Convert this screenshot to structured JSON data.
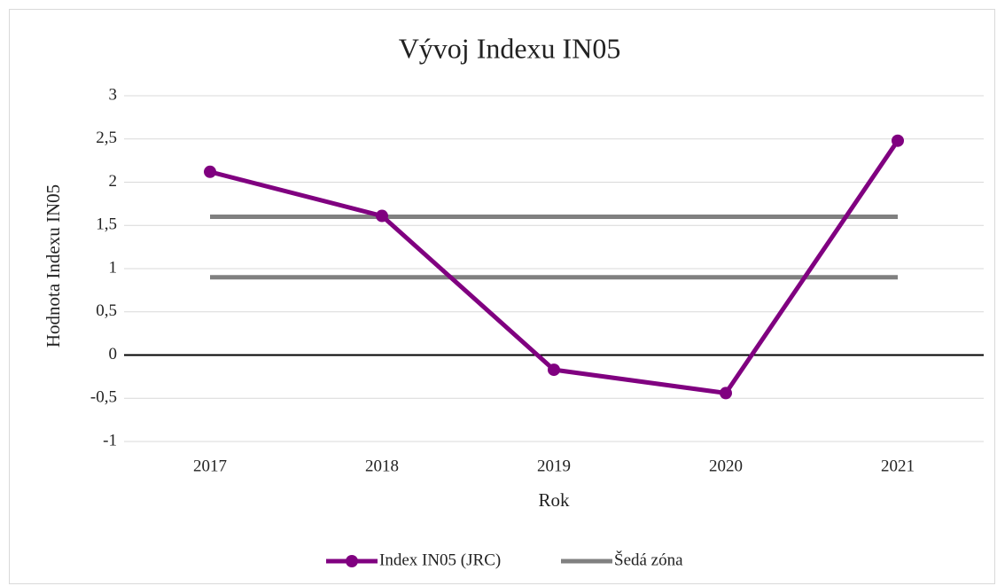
{
  "chart_data": {
    "type": "line",
    "title": "Vývoj Indexu IN05",
    "x_label": "Rok",
    "y_label": "Hodnota Indexu IN05",
    "categories": [
      "2017",
      "2018",
      "2019",
      "2020",
      "2021"
    ],
    "series": [
      {
        "name": "Index IN05 (JRC)",
        "color": "#800080",
        "values": [
          2.12,
          1.61,
          -0.17,
          -0.44,
          2.48
        ]
      }
    ],
    "reference_lines": {
      "name": "Šedá zóna",
      "color": "#808080",
      "values": [
        0.9,
        1.6
      ]
    },
    "ylim": [
      -1,
      3
    ],
    "yticks": [
      -1,
      {
        "value": -0.5,
        "label": "-0,5"
      },
      0,
      {
        "value": 0.5,
        "label": "0,5"
      },
      1,
      {
        "value": 1.5,
        "label": "1,5"
      },
      2,
      {
        "value": 2.5,
        "label": "2,5"
      },
      3
    ],
    "grid": true,
    "legend": "bottom"
  }
}
